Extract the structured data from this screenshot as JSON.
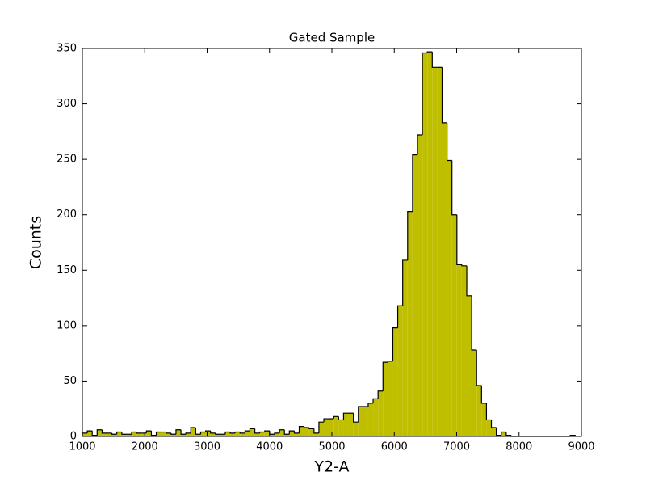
{
  "chart_data": {
    "type": "histogram",
    "title": "Gated Sample",
    "xlabel": "Y2-A",
    "ylabel": "Counts",
    "color": "#bfbf00",
    "edgecolor": "#000000",
    "bins": [
      1000,
      1079,
      1158,
      1237,
      1316,
      1395,
      1474,
      1553,
      1632,
      1711,
      1790,
      1869,
      1948,
      2027,
      2106,
      2185,
      2264,
      2343,
      2422,
      2501,
      2580,
      2659,
      2738,
      2817,
      2896,
      2975,
      3054,
      3133,
      3212,
      3291,
      3370,
      3449,
      3528,
      3607,
      3686,
      3765,
      3844,
      3923,
      4002,
      4081,
      4160,
      4239,
      4318,
      4397,
      4476,
      4555,
      4634,
      4713,
      4792,
      4871,
      4950,
      5029,
      5108,
      5187,
      5266,
      5345,
      5424,
      5503,
      5582,
      5661,
      5740,
      5819,
      5898,
      5977,
      6056,
      6135,
      6214,
      6293,
      6372,
      6451,
      6530,
      6609,
      6688,
      6767,
      6846,
      6925,
      7004,
      7083,
      7162,
      7241,
      7320,
      7399,
      7478,
      7557,
      7636,
      7715,
      7794,
      7873,
      7952,
      8031,
      8110,
      8189,
      8268,
      8347,
      8426,
      8505,
      8584,
      8663,
      8742,
      8821,
      8900
    ],
    "values": [
      3,
      5,
      1,
      6,
      3,
      3,
      2,
      4,
      2,
      2,
      4,
      3,
      3,
      5,
      1,
      4,
      4,
      3,
      2,
      6,
      2,
      3,
      8,
      2,
      4,
      5,
      3,
      2,
      2,
      4,
      3,
      4,
      3,
      5,
      7,
      3,
      4,
      5,
      2,
      3,
      6,
      2,
      5,
      3,
      9,
      8,
      7,
      3,
      13,
      16,
      16,
      18,
      15,
      21,
      21,
      13,
      27,
      27,
      30,
      34,
      41,
      67,
      68,
      98,
      118,
      159,
      203,
      254,
      272,
      346,
      347,
      333,
      333,
      283,
      249,
      200,
      155,
      154,
      127,
      78,
      46,
      30,
      15,
      8,
      1,
      4,
      1,
      0,
      0,
      0,
      0,
      0,
      0,
      0,
      0,
      0,
      0,
      0,
      0,
      1
    ],
    "xlim": [
      1000,
      9000
    ],
    "xticks": [
      1000,
      2000,
      3000,
      4000,
      5000,
      6000,
      7000,
      8000,
      9000
    ],
    "ylim": [
      0,
      350
    ],
    "yticks": [
      0,
      50,
      100,
      150,
      200,
      250,
      300,
      350
    ]
  }
}
